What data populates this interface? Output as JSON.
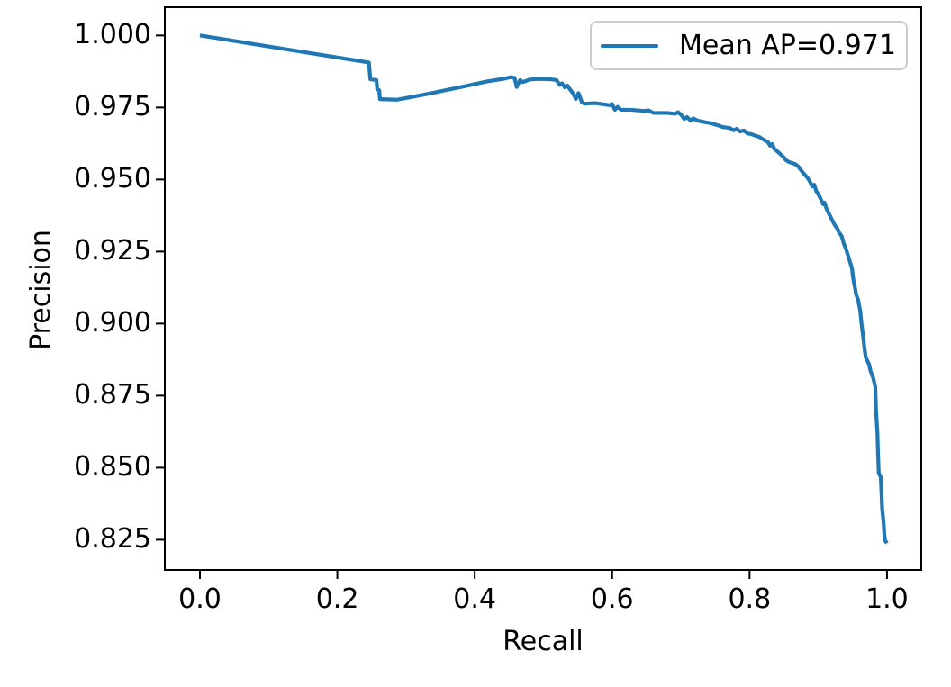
{
  "figure": {
    "background": "#ffffff",
    "text_color": "#000000",
    "spine_color": "#000000",
    "legend_border_color": "#cccccc"
  },
  "chart_data": {
    "type": "line",
    "title": "",
    "xlabel": "Recall",
    "ylabel": "Precision",
    "grid": false,
    "xlim": [
      -0.0511,
      1.0499
    ],
    "ylim": [
      0.8145,
      1.0098
    ],
    "xticks": {
      "values": [
        0.0,
        0.2,
        0.4,
        0.6,
        0.8,
        1.0
      ],
      "labels": [
        "0.0",
        "0.2",
        "0.4",
        "0.6",
        "0.8",
        "1.0"
      ]
    },
    "yticks": {
      "values": [
        1.0,
        0.975,
        0.95,
        0.925,
        0.9,
        0.875,
        0.85,
        0.825
      ],
      "labels": [
        "1.000",
        "0.975",
        "0.950",
        "0.925",
        "0.900",
        "0.875",
        "0.850",
        "0.825"
      ]
    },
    "legend": {
      "position": "upper right",
      "entries": [
        {
          "label": "Mean AP=0.971",
          "color": "#1f77b4"
        }
      ]
    },
    "series": [
      {
        "name": "Mean AP=0.971",
        "color": "#1f77b4",
        "line_width": 4.2,
        "points": [
          [
            0.0,
            1.0
          ],
          [
            0.246,
            0.9906
          ],
          [
            0.248,
            0.9848
          ],
          [
            0.257,
            0.9845
          ],
          [
            0.258,
            0.9813
          ],
          [
            0.261,
            0.981
          ],
          [
            0.262,
            0.9779
          ],
          [
            0.287,
            0.9777
          ],
          [
            0.312,
            0.9788
          ],
          [
            0.338,
            0.98
          ],
          [
            0.364,
            0.9813
          ],
          [
            0.39,
            0.9826
          ],
          [
            0.417,
            0.984
          ],
          [
            0.443,
            0.985
          ],
          [
            0.452,
            0.9855
          ],
          [
            0.458,
            0.9853
          ],
          [
            0.461,
            0.9821
          ],
          [
            0.466,
            0.9845
          ],
          [
            0.47,
            0.9838
          ],
          [
            0.48,
            0.9847
          ],
          [
            0.495,
            0.9849
          ],
          [
            0.51,
            0.9848
          ],
          [
            0.519,
            0.9845
          ],
          [
            0.524,
            0.9828
          ],
          [
            0.527,
            0.9834
          ],
          [
            0.531,
            0.982
          ],
          [
            0.535,
            0.9826
          ],
          [
            0.539,
            0.9812
          ],
          [
            0.544,
            0.9796
          ],
          [
            0.547,
            0.9779
          ],
          [
            0.551,
            0.98
          ],
          [
            0.556,
            0.9768
          ],
          [
            0.56,
            0.9763
          ],
          [
            0.575,
            0.9765
          ],
          [
            0.585,
            0.9762
          ],
          [
            0.596,
            0.9758
          ],
          [
            0.6,
            0.9762
          ],
          [
            0.604,
            0.9742
          ],
          [
            0.608,
            0.9752
          ],
          [
            0.613,
            0.9742
          ],
          [
            0.627,
            0.9742
          ],
          [
            0.646,
            0.9738
          ],
          [
            0.653,
            0.974
          ],
          [
            0.66,
            0.9731
          ],
          [
            0.68,
            0.9731
          ],
          [
            0.692,
            0.9728
          ],
          [
            0.696,
            0.9734
          ],
          [
            0.701,
            0.9723
          ],
          [
            0.705,
            0.971
          ],
          [
            0.709,
            0.9717
          ],
          [
            0.714,
            0.9704
          ],
          [
            0.718,
            0.9712
          ],
          [
            0.725,
            0.9704
          ],
          [
            0.735,
            0.9699
          ],
          [
            0.744,
            0.9695
          ],
          [
            0.754,
            0.9688
          ],
          [
            0.761,
            0.9682
          ],
          [
            0.771,
            0.9679
          ],
          [
            0.777,
            0.9671
          ],
          [
            0.781,
            0.9676
          ],
          [
            0.786,
            0.9667
          ],
          [
            0.792,
            0.967
          ],
          [
            0.797,
            0.966
          ],
          [
            0.803,
            0.9657
          ],
          [
            0.81,
            0.9651
          ],
          [
            0.814,
            0.9648
          ],
          [
            0.82,
            0.9639
          ],
          [
            0.827,
            0.9629
          ],
          [
            0.83,
            0.9617
          ],
          [
            0.833,
            0.9623
          ],
          [
            0.836,
            0.9607
          ],
          [
            0.843,
            0.9592
          ],
          [
            0.849,
            0.9579
          ],
          [
            0.853,
            0.9567
          ],
          [
            0.858,
            0.956
          ],
          [
            0.866,
            0.9554
          ],
          [
            0.871,
            0.9545
          ],
          [
            0.875,
            0.9532
          ],
          [
            0.879,
            0.952
          ],
          [
            0.884,
            0.9507
          ],
          [
            0.888,
            0.9492
          ],
          [
            0.891,
            0.9476
          ],
          [
            0.894,
            0.9482
          ],
          [
            0.897,
            0.946
          ],
          [
            0.901,
            0.9445
          ],
          [
            0.904,
            0.943
          ],
          [
            0.907,
            0.9414
          ],
          [
            0.909,
            0.942
          ],
          [
            0.912,
            0.9398
          ],
          [
            0.916,
            0.9379
          ],
          [
            0.92,
            0.936
          ],
          [
            0.924,
            0.9342
          ],
          [
            0.928,
            0.9329
          ],
          [
            0.93,
            0.9317
          ],
          [
            0.934,
            0.9304
          ],
          [
            0.937,
            0.9279
          ],
          [
            0.941,
            0.9254
          ],
          [
            0.945,
            0.9223
          ],
          [
            0.949,
            0.9192
          ],
          [
            0.951,
            0.9154
          ],
          [
            0.954,
            0.9117
          ],
          [
            0.955,
            0.9101
          ],
          [
            0.958,
            0.9082
          ],
          [
            0.961,
            0.9045
          ],
          [
            0.963,
            0.8998
          ],
          [
            0.965,
            0.8961
          ],
          [
            0.967,
            0.892
          ],
          [
            0.969,
            0.8883
          ],
          [
            0.971,
            0.8873
          ],
          [
            0.974,
            0.8858
          ],
          [
            0.976,
            0.8836
          ],
          [
            0.98,
            0.8811
          ],
          [
            0.983,
            0.878
          ],
          [
            0.984,
            0.87
          ],
          [
            0.986,
            0.8623
          ],
          [
            0.987,
            0.8545
          ],
          [
            0.988,
            0.8482
          ],
          [
            0.991,
            0.8467
          ],
          [
            0.992,
            0.841
          ],
          [
            0.993,
            0.8357
          ],
          [
            0.995,
            0.831
          ],
          [
            0.996,
            0.8273
          ],
          [
            0.997,
            0.8248
          ],
          [
            1.0,
            0.8238
          ]
        ]
      }
    ]
  }
}
